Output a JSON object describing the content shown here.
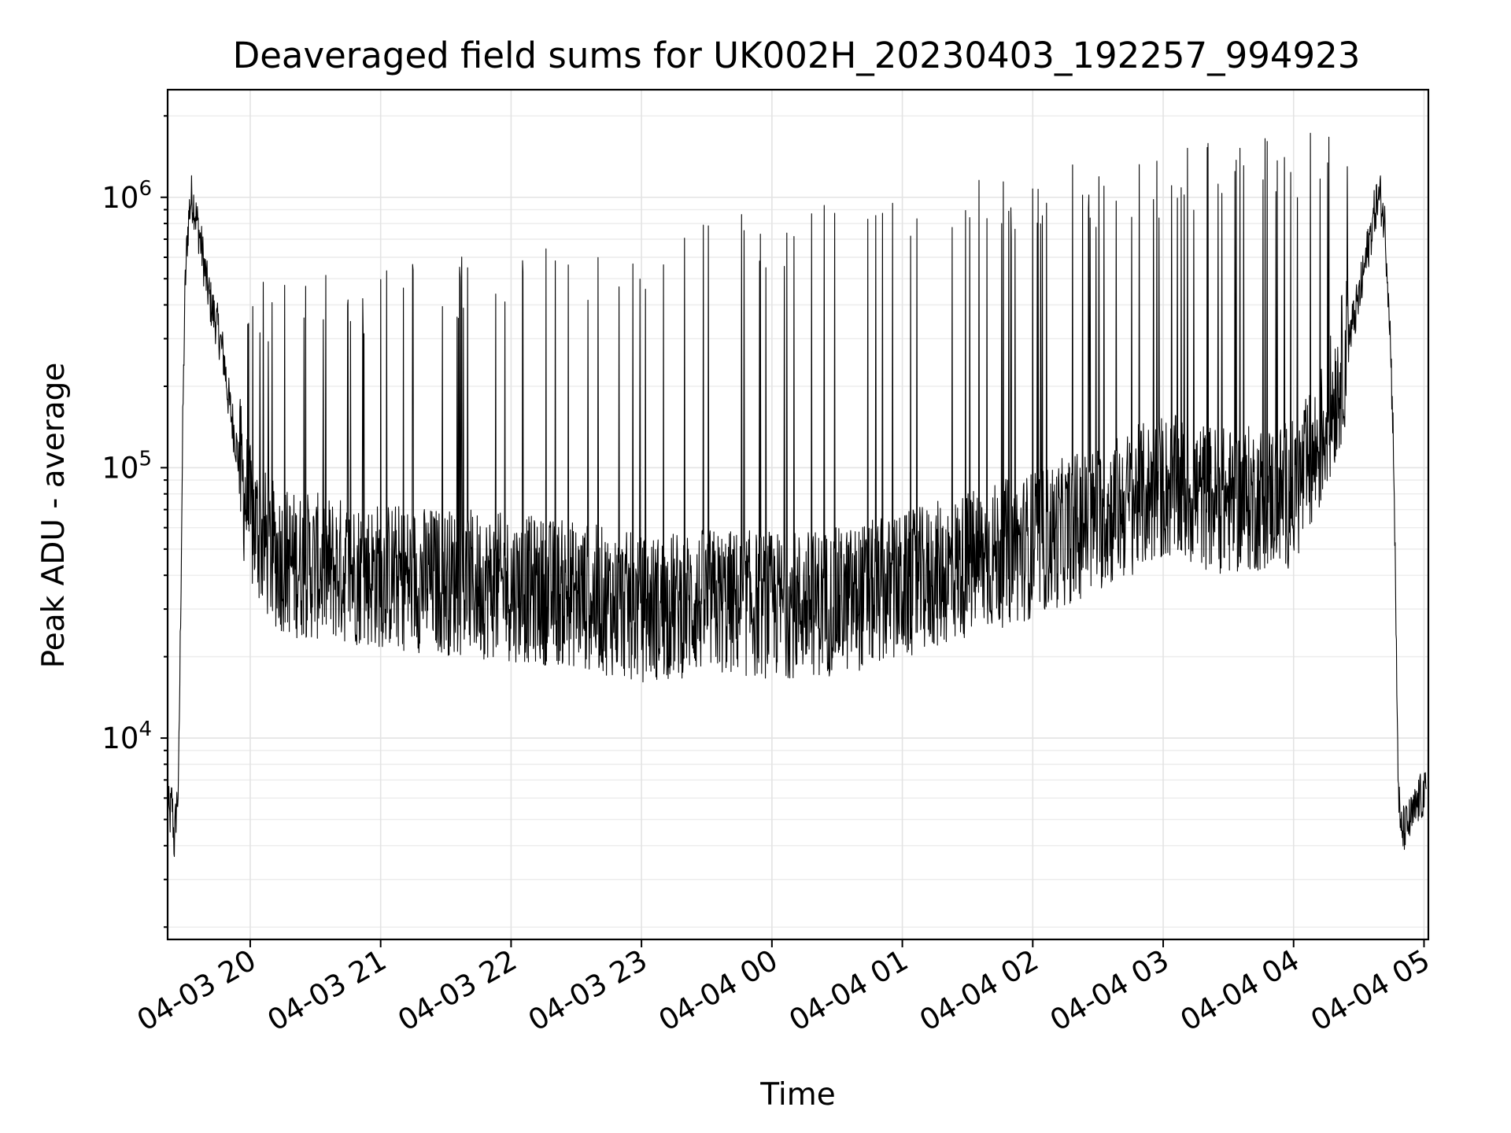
{
  "chart_data": {
    "type": "line",
    "title": "Deaveraged field sums for UK002H_20230403_192257_994923",
    "xlabel": "Time",
    "ylabel": "Peak ADU - average",
    "yscale": "log",
    "ylim": [
      1800,
      2500000
    ],
    "xlim": [
      "2023-04-03 19:22",
      "2023-04-04 05:02"
    ],
    "grid": true,
    "line_color": "#000000",
    "x_ticks": [
      {
        "time": "2023-04-03 20:00",
        "label": "04-03 20"
      },
      {
        "time": "2023-04-03 21:00",
        "label": "04-03 21"
      },
      {
        "time": "2023-04-03 22:00",
        "label": "04-03 22"
      },
      {
        "time": "2023-04-03 23:00",
        "label": "04-03 23"
      },
      {
        "time": "2023-04-04 00:00",
        "label": "04-04 00"
      },
      {
        "time": "2023-04-04 01:00",
        "label": "04-04 01"
      },
      {
        "time": "2023-04-04 02:00",
        "label": "04-04 02"
      },
      {
        "time": "2023-04-04 03:00",
        "label": "04-04 03"
      },
      {
        "time": "2023-04-04 04:00",
        "label": "04-04 04"
      },
      {
        "time": "2023-04-04 05:00",
        "label": "04-04 05"
      }
    ],
    "y_ticks": [
      {
        "value": 10000,
        "label_base": "10",
        "label_exp": "4"
      },
      {
        "value": 100000,
        "label_base": "10",
        "label_exp": "5"
      },
      {
        "value": 1000000,
        "label_base": "10",
        "label_exp": "6"
      }
    ],
    "series": [
      {
        "points": [
          [
            "2023-04-03 19:22",
            6000
          ],
          [
            "2023-04-03 19:23",
            5000
          ],
          [
            "2023-04-03 19:24",
            6000
          ],
          [
            "2023-04-03 19:25",
            4000
          ],
          [
            "2023-04-03 19:26",
            5500
          ],
          [
            "2023-04-03 19:27",
            6500
          ],
          [
            "2023-04-03 19:28",
            30000
          ],
          [
            "2023-04-03 19:29",
            150000
          ],
          [
            "2023-04-03 19:30",
            450000
          ],
          [
            "2023-04-03 19:31",
            700000
          ],
          [
            "2023-04-03 19:32",
            900000
          ],
          [
            "2023-04-03 19:33",
            1000000
          ],
          [
            "2023-04-03 19:34",
            950000
          ],
          [
            "2023-04-03 19:35",
            850000
          ],
          [
            "2023-04-03 19:36",
            780000
          ],
          [
            "2023-04-03 19:38",
            620000
          ],
          [
            "2023-04-03 19:40",
            480000
          ],
          [
            "2023-04-03 19:42",
            400000
          ],
          [
            "2023-04-03 19:45",
            330000
          ],
          [
            "2023-04-03 19:48",
            250000
          ],
          [
            "2023-04-03 19:50",
            180000
          ],
          [
            "2023-04-03 19:53",
            130000
          ],
          [
            "2023-04-03 19:56",
            90000
          ],
          [
            "2023-04-03 20:00",
            65000
          ],
          [
            "2023-04-03 20:10",
            48000
          ],
          [
            "2023-04-03 20:20",
            44000
          ],
          [
            "2023-04-03 20:40",
            42000
          ],
          [
            "2023-04-03 21:00",
            40000
          ],
          [
            "2023-04-03 21:30",
            38000
          ],
          [
            "2023-04-03 22:00",
            36000
          ],
          [
            "2023-04-03 22:30",
            34000
          ],
          [
            "2023-04-03 23:00",
            30000
          ],
          [
            "2023-04-03 23:30",
            32000
          ],
          [
            "2023-04-04 00:00",
            31000
          ],
          [
            "2023-04-04 00:30",
            32000
          ],
          [
            "2023-04-04 01:00",
            36000
          ],
          [
            "2023-04-04 01:30",
            44000
          ],
          [
            "2023-04-04 02:00",
            52000
          ],
          [
            "2023-04-04 02:30",
            65000
          ],
          [
            "2023-04-04 03:00",
            85000
          ],
          [
            "2023-04-04 03:30",
            75000
          ],
          [
            "2023-04-04 04:00",
            80000
          ],
          [
            "2023-04-04 04:10",
            110000
          ],
          [
            "2023-04-04 04:20",
            200000
          ],
          [
            "2023-04-04 04:30",
            420000
          ],
          [
            "2023-04-04 04:35",
            700000
          ],
          [
            "2023-04-04 04:38",
            950000
          ],
          [
            "2023-04-04 04:40",
            1000000
          ],
          [
            "2023-04-04 04:42",
            780000
          ],
          [
            "2023-04-04 04:44",
            400000
          ],
          [
            "2023-04-04 04:46",
            120000
          ],
          [
            "2023-04-04 04:47",
            30000
          ],
          [
            "2023-04-04 04:48",
            8000
          ],
          [
            "2023-04-04 04:49",
            4500
          ],
          [
            "2023-04-04 04:52",
            4700
          ],
          [
            "2023-04-04 04:55",
            5200
          ],
          [
            "2023-04-04 04:58",
            6000
          ],
          [
            "2023-04-04 05:02",
            6200
          ]
        ]
      }
    ]
  }
}
